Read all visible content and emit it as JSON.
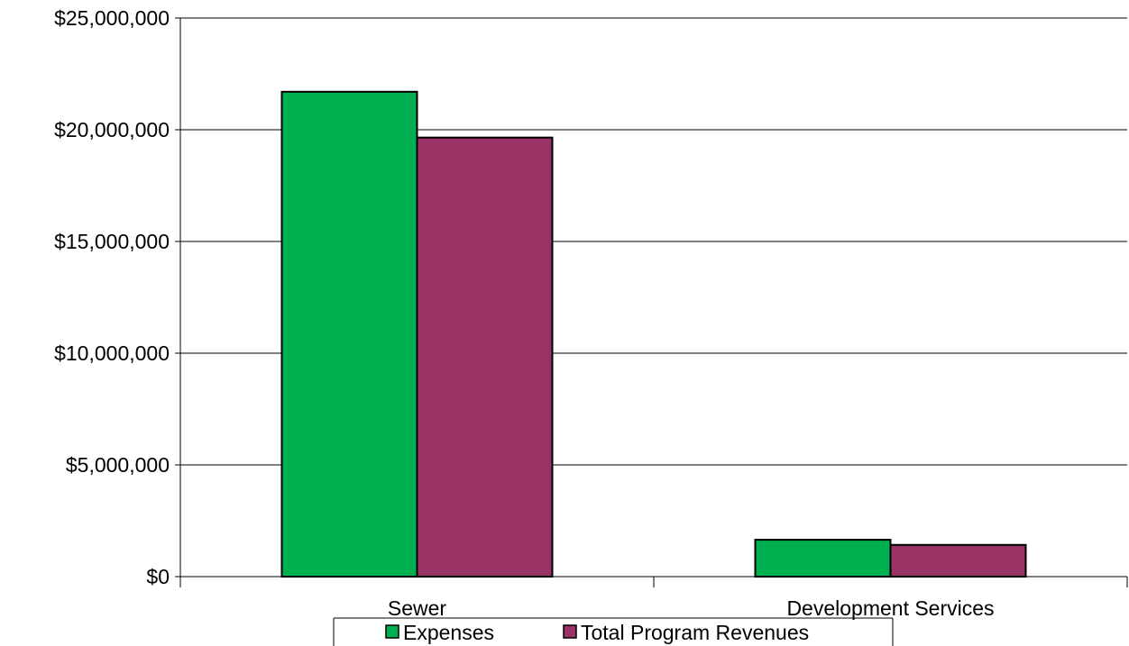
{
  "chart_data": {
    "type": "bar",
    "categories": [
      "Sewer",
      "Development Services"
    ],
    "series": [
      {
        "name": "Expenses",
        "values": [
          21700000,
          1650000
        ],
        "color": "#00B050"
      },
      {
        "name": "Total Program Revenues",
        "values": [
          19650000,
          1420000
        ],
        "color": "#993366"
      }
    ],
    "title": "",
    "xlabel": "",
    "ylabel": "",
    "ylim": [
      0,
      25000000
    ],
    "y_ticks": [
      0,
      5000000,
      10000000,
      15000000,
      20000000,
      25000000
    ],
    "y_tick_labels": [
      "$0",
      "$5,000,000",
      "$10,000,000",
      "$15,000,000",
      "$20,000,000",
      "$25,000,000"
    ],
    "grid": true,
    "legend_position": "bottom"
  }
}
